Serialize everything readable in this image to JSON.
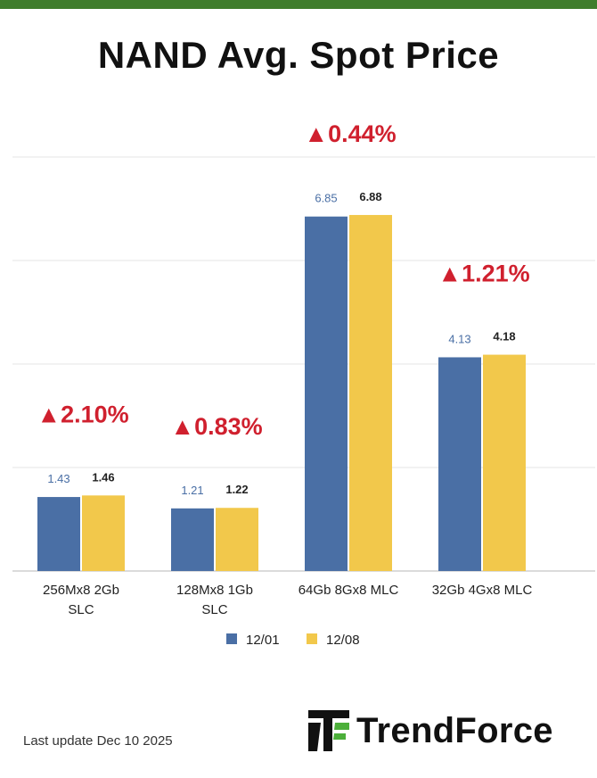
{
  "title": "NAND Avg. Spot Price",
  "footer": {
    "last_update": "Last update Dec 10 2025",
    "brand": "TrendForce"
  },
  "chart_data": {
    "type": "bar",
    "title": "NAND Avg. Spot Price",
    "categories": [
      [
        "256Mx8 2Gb",
        "SLC"
      ],
      [
        "128Mx8 1Gb",
        "SLC"
      ],
      [
        "64Gb 8Gx8 MLC"
      ],
      [
        "32Gb 4Gx8 MLC"
      ]
    ],
    "series": [
      {
        "name": "12/01",
        "values": [
          1.43,
          1.21,
          6.85,
          4.13
        ],
        "color": "#4a6fa5",
        "label_color": "#4a6fa5"
      },
      {
        "name": "12/08",
        "values": [
          1.46,
          1.22,
          6.88,
          4.18
        ],
        "color": "#f2c84b",
        "label_color": "#222222"
      }
    ],
    "changes": [
      "2.10%",
      "0.83%",
      "0.44%",
      "1.21%"
    ],
    "change_color": "#d0202e",
    "ylim": [
      0,
      8
    ],
    "grid": true,
    "legend_position": "bottom"
  }
}
